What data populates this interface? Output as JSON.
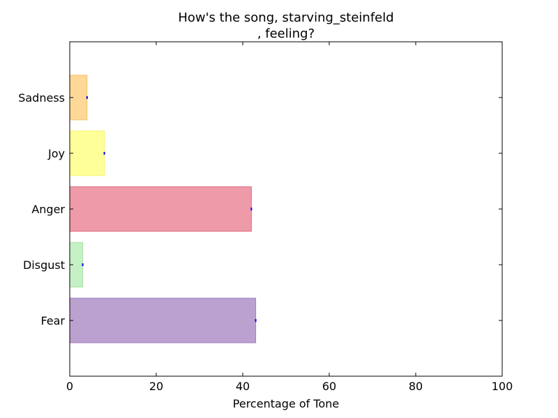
{
  "chart_data": {
    "type": "bar",
    "orientation": "horizontal",
    "title_lines": [
      "How's the song, starving_steinfeld",
      ", feeling?"
    ],
    "xlabel": "Percentage of Tone",
    "ylabel": "",
    "xlim": [
      0,
      100
    ],
    "x_ticks": [
      "0",
      "20",
      "40",
      "60",
      "80",
      "100"
    ],
    "x_tick_values": [
      0,
      20,
      40,
      60,
      80,
      100
    ],
    "categories": [
      "Fear",
      "Disgust",
      "Anger",
      "Joy",
      "Sadness"
    ],
    "values": [
      43,
      3,
      42,
      8,
      4
    ],
    "colors": {
      "Fear": "#bba1d0",
      "Disgust": "#c5f0c5",
      "Anger": "#ee9aa9",
      "Joy": "#ffff99",
      "Sadness": "#fdd897"
    },
    "edge_colors": {
      "Fear": "#a07fc0",
      "Disgust": "#a8e0a8",
      "Anger": "#e06a80",
      "Joy": "#f4f466",
      "Sadness": "#f5c06a"
    },
    "marker_color": "#0000ff",
    "grid": false,
    "legend": "none"
  }
}
